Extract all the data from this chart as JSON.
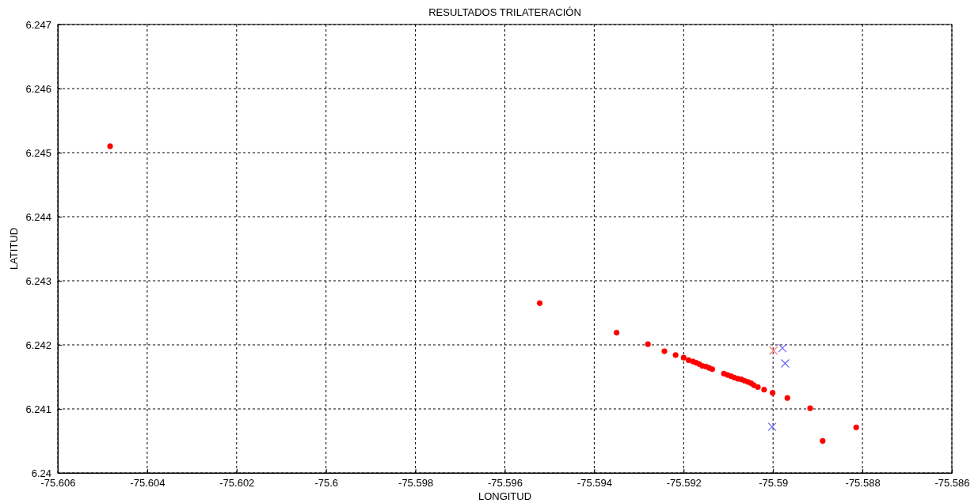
{
  "chart_data": {
    "type": "scatter",
    "title": "RESULTADOS TRILATERACIÓN",
    "xlabel": "LONGITUD",
    "ylabel": "LATITUD",
    "xlim": [
      -75.606,
      -75.586
    ],
    "xticks": [
      -75.606,
      -75.604,
      -75.602,
      -75.6,
      -75.598,
      -75.596,
      -75.594,
      -75.592,
      -75.59,
      -75.588,
      -75.586
    ],
    "ylim": [
      6.24,
      6.247
    ],
    "yticks": [
      6.24,
      6.241,
      6.242,
      6.243,
      6.244,
      6.245,
      6.246,
      6.247
    ],
    "grid": true,
    "series": [
      {
        "color": "#ff0000",
        "marker": "circle",
        "x": [
          -75.60483,
          -75.59522,
          -75.5935,
          -75.5928,
          -75.59243,
          -75.59218,
          -75.592,
          -75.59189,
          -75.59179,
          -75.59172,
          -75.59165,
          -75.59158,
          -75.5915,
          -75.59143,
          -75.59136,
          -75.5911,
          -75.59102,
          -75.59094,
          -75.59087,
          -75.59079,
          -75.59071,
          -75.59064,
          -75.59056,
          -75.59049,
          -75.59043,
          -75.59034,
          -75.5902,
          -75.59001,
          -75.58968,
          -75.58917,
          -75.58814,
          -75.58889
        ],
        "values": [
          6.2451,
          6.24265,
          6.24219,
          6.24201,
          6.2419,
          6.24184,
          6.2418,
          6.24176,
          6.24174,
          6.24172,
          6.2417,
          6.24167,
          6.24166,
          6.24164,
          6.24162,
          6.24155,
          6.24153,
          6.24151,
          6.24149,
          6.24147,
          6.24146,
          6.24144,
          6.24142,
          6.2414,
          6.24137,
          6.24134,
          6.2413,
          6.24125,
          6.24117,
          6.24101,
          6.24071,
          6.2405
        ]
      },
      {
        "color": "#6666ff",
        "marker": "cross",
        "x": [
          -75.58979,
          -75.58973,
          -75.59002
        ],
        "values": [
          6.24195,
          6.24171,
          6.24072
        ]
      },
      {
        "color": "#ff7777",
        "marker": "cross",
        "x": [
          -75.58999
        ],
        "values": [
          6.24191
        ]
      }
    ]
  }
}
